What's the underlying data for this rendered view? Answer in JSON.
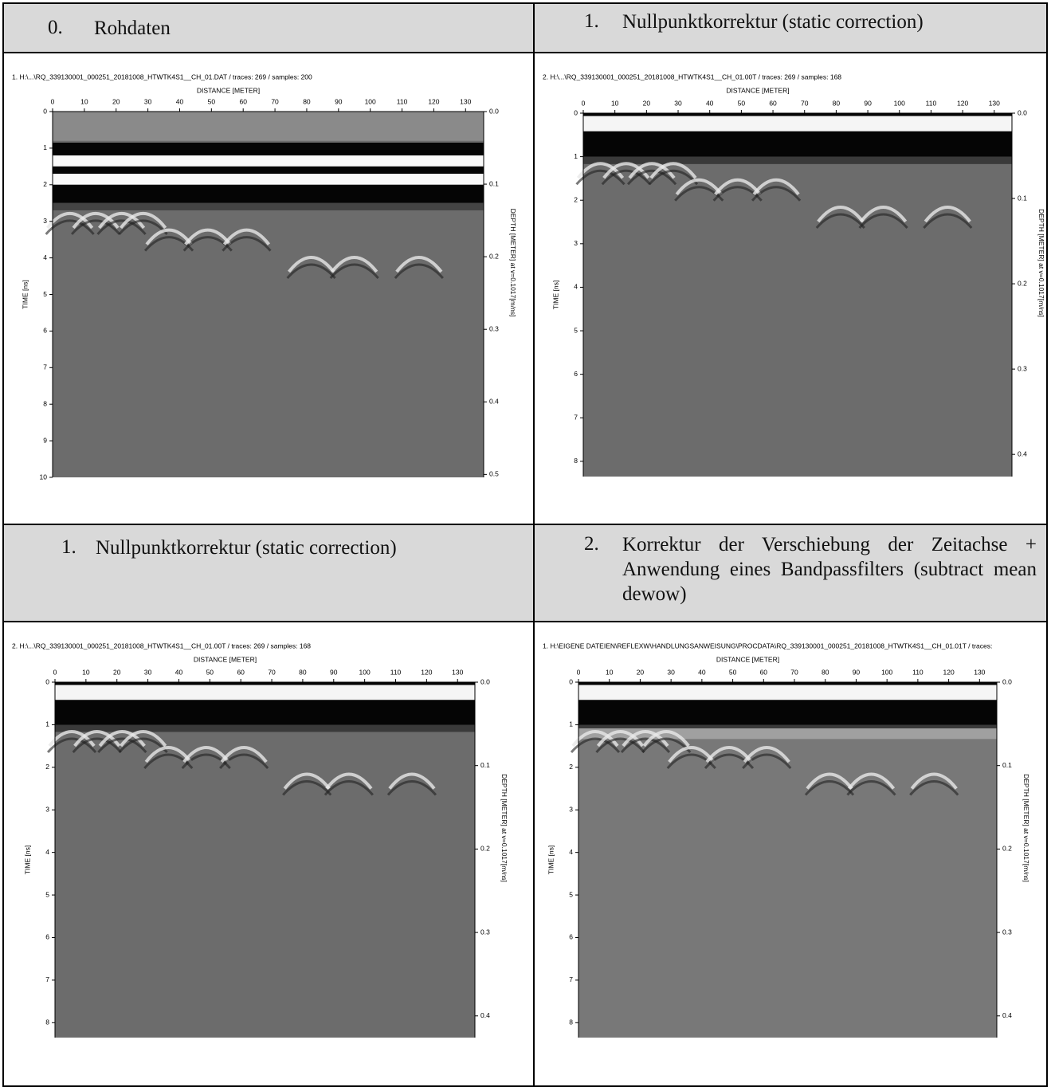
{
  "panels": [
    {
      "number": "0.",
      "heading": "Rohdaten",
      "caption": "1. H:\\...\\RQ_339130001_000251_20181008_HTWTK4S1__CH_01.DAT / traces: 269 / samples: 200",
      "x_label": "DISTANCE [METER]",
      "y_label": "TIME [ns]",
      "y2_label": "DEPTH [METER] at v=0.1017[m/ns]",
      "xlim": [
        0,
        135.7
      ],
      "xticks": [
        0,
        10,
        20,
        30,
        40,
        50,
        60,
        70,
        80,
        90,
        100,
        110,
        120,
        130
      ],
      "ylim": [
        0,
        10
      ],
      "yticks": [
        0,
        1,
        2,
        3,
        4,
        5,
        6,
        7,
        8,
        9,
        10
      ],
      "y2lim": [
        0,
        0.504
      ],
      "y2ticks": [
        {
          "value": 0,
          "label": "0.0"
        },
        0.1,
        0.2,
        0.3,
        0.4,
        0.5
      ]
    },
    {
      "number": "1.",
      "heading": "Nullpunktkorrektur (static correction)",
      "caption": "2. H:\\...\\RQ_339130001_000251_20181008_HTWTK4S1__CH_01.00T / traces: 269 / samples: 168",
      "x_label": "DISTANCE [METER]",
      "y_label": "TIME [ns]",
      "y2_label": "DEPTH [METER] at v=0.1017[m/ns]",
      "xlim": [
        0,
        135.6
      ],
      "xticks": [
        0,
        10,
        20,
        30,
        40,
        50,
        60,
        70,
        80,
        90,
        100,
        110,
        120,
        130
      ],
      "ylim": [
        0,
        8.35
      ],
      "yticks": [
        0,
        1,
        2,
        3,
        4,
        5,
        6,
        7,
        8
      ],
      "y2lim": [
        0,
        0.426
      ],
      "y2ticks": [
        {
          "value": 0,
          "label": "0.0"
        },
        0.1,
        0.2,
        0.3,
        0.4
      ]
    },
    {
      "number": "1.",
      "heading": "Nullpunktkorrektur (static correction)",
      "caption": "2. H:\\...\\RQ_339130001_000251_20181008_HTWTK4S1__CH_01.00T / traces: 269 / samples: 168",
      "x_label": "DISTANCE [METER]",
      "y_label": "TIME [ns]",
      "y2_label": "DEPTH [METER] at v=0.1017[m/ns]",
      "xlim": [
        0,
        135.6
      ],
      "xticks": [
        0,
        10,
        20,
        30,
        40,
        50,
        60,
        70,
        80,
        90,
        100,
        110,
        120,
        130
      ],
      "ylim": [
        0,
        8.35
      ],
      "yticks": [
        0,
        1,
        2,
        3,
        4,
        5,
        6,
        7,
        8
      ],
      "y2lim": [
        0,
        0.426
      ],
      "y2ticks": [
        {
          "value": 0,
          "label": "0.0"
        },
        0.1,
        0.2,
        0.3,
        0.4
      ]
    },
    {
      "number": "2.",
      "heading": "Korrektur der Verschiebung der Zeitachse + Anwendung eines Bandpassfilters (subtract mean dewow)",
      "caption": "1. H:\\EIGENE DATEIEN\\REFLEXW\\HANDLUNGSANWEISUNG\\PROCDATA\\RQ_339130001_000251_20181008_HTWTK4S1__CH_01.01T / traces:",
      "x_label": "DISTANCE [METER]",
      "y_label": "TIME [ns]",
      "y2_label": "DEPTH [METER] at v=0.1017[m/ns]",
      "xlim": [
        0,
        135.6
      ],
      "xticks": [
        0,
        10,
        20,
        30,
        40,
        50,
        60,
        70,
        80,
        90,
        100,
        110,
        120,
        130
      ],
      "ylim": [
        0,
        8.35
      ],
      "yticks": [
        0,
        1,
        2,
        3,
        4,
        5,
        6,
        7,
        8
      ],
      "y2lim": [
        0,
        0.426
      ],
      "y2ticks": [
        {
          "value": 0,
          "label": "0.0"
        },
        0.1,
        0.2,
        0.3,
        0.4
      ]
    }
  ]
}
